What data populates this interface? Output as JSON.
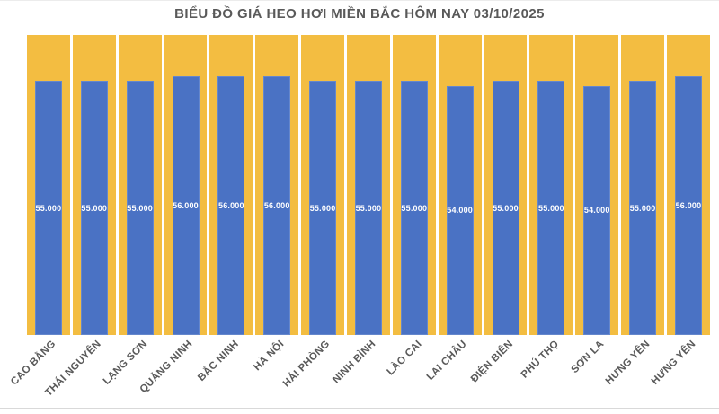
{
  "title": "BIỂU ĐỒ GIÁ HEO HƠI MIỀN BẮC HÔM NAY 03/10/2025",
  "colors": {
    "bar_fill": "#4a72c4",
    "column_background": "#f3bd41",
    "text": "#595959",
    "value_label_text": "#ffffff",
    "page_background": "#ffffff"
  },
  "chart_data": {
    "type": "bar",
    "title": "BIỂU ĐỒ GIÁ HEO HƠI MIỀN BẮC HÔM NAY 03/10/2025",
    "categories": [
      "CAO BẰNG",
      "THÁI NGUYÊN",
      "LẠNG SƠN",
      "QUẢNG NINH",
      "BẮC NINH",
      "HÀ NỘI",
      "HẢI PHÒNG",
      "NINH BÌNH",
      "LÀO CAI",
      "LAI CHÂU",
      "ĐIỆN BIÊN",
      "PHÚ THỌ",
      "SƠN LA",
      "HƯNG YÊN",
      "HƯNG YÊN"
    ],
    "values": [
      55000,
      55000,
      55000,
      56000,
      56000,
      56000,
      55000,
      55000,
      55000,
      54000,
      55000,
      55000,
      54000,
      55000,
      56000
    ],
    "value_labels": [
      "55.000",
      "55.000",
      "55.000",
      "56.000",
      "56.000",
      "56.000",
      "55.000",
      "55.000",
      "55.000",
      "54.000",
      "55.000",
      "55.000",
      "54.000",
      "55.000",
      "56.000"
    ],
    "xlabel": "",
    "ylabel": "",
    "ylim": [
      0,
      65000
    ],
    "grid": false,
    "legend_position": "none",
    "background_columns_full_height": true,
    "value_label_position": "inside-center"
  }
}
